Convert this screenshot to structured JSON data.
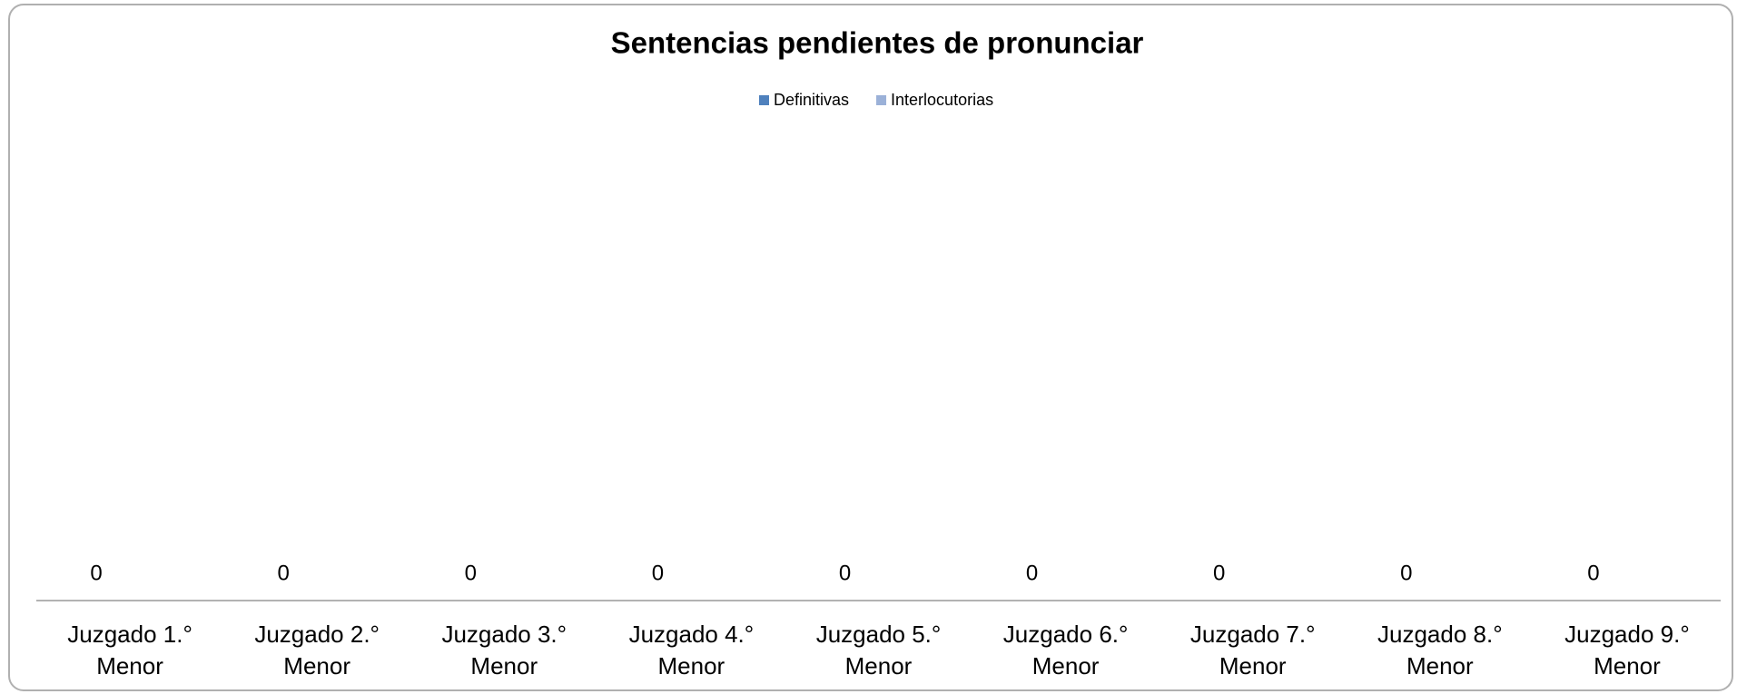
{
  "chart_data": {
    "type": "bar",
    "title": "Sentencias pendientes de pronunciar",
    "categories": [
      "Juzgado 1.° Menor",
      "Juzgado 2.° Menor",
      "Juzgado 3.° Menor",
      "Juzgado 4.° Menor",
      "Juzgado 5.° Menor",
      "Juzgado 6.° Menor",
      "Juzgado 7.° Menor",
      "Juzgado 8.° Menor",
      "Juzgado 9.° Menor"
    ],
    "series": [
      {
        "name": "Definitivas",
        "color": "#4f81bd",
        "values": [
          0,
          0,
          0,
          0,
          0,
          0,
          0,
          0,
          0
        ]
      },
      {
        "name": "Interlocutorias",
        "color": "#9bb1d8",
        "values": [
          0,
          0,
          0,
          0,
          0,
          0,
          0,
          0,
          0
        ]
      }
    ],
    "legend": "top"
  }
}
